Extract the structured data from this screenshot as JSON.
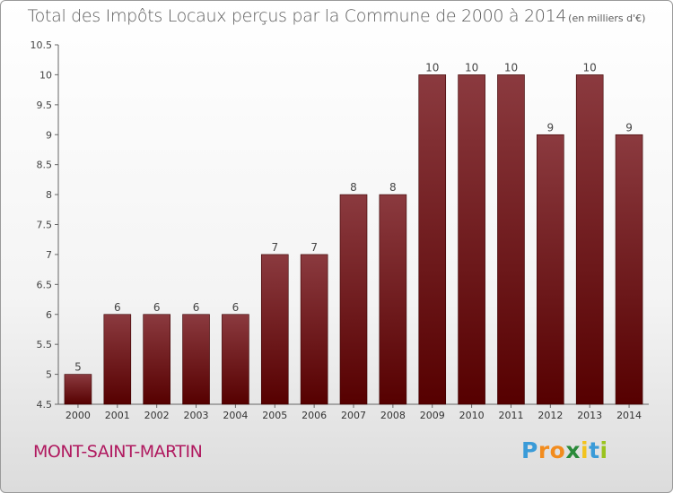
{
  "title": "Total des Impôts Locaux perçus par la Commune de 2000 à 2014",
  "subtitle": "(en milliers d'€)",
  "commune": "MONT-SAINT-MARTIN",
  "brand": {
    "letters": [
      "P",
      "r",
      "o",
      "x",
      "i",
      "t",
      "i"
    ],
    "colors": [
      "#3a9bd8",
      "#f28c1e",
      "#f28c1e",
      "#2a8a3a",
      "#f2c31e",
      "#3a9bd8",
      "#9ac31e"
    ]
  },
  "colors": {
    "bar_top": "#8b3a3f",
    "bar_bottom": "#560000",
    "commune": "#b0195f"
  },
  "chart_data": {
    "type": "bar",
    "title": "Total des Impôts Locaux perçus par la Commune de 2000 à 2014",
    "xlabel": "",
    "ylabel": "",
    "categories": [
      "2000",
      "2001",
      "2002",
      "2003",
      "2004",
      "2005",
      "2006",
      "2007",
      "2008",
      "2009",
      "2010",
      "2011",
      "2012",
      "2013",
      "2014"
    ],
    "values": [
      5,
      6,
      6,
      6,
      6,
      7,
      7,
      8,
      8,
      10,
      10,
      10,
      9,
      10,
      9
    ],
    "value_labels": [
      "5",
      "6",
      "6",
      "6",
      "6",
      "7",
      "7",
      "8",
      "8",
      "10",
      "10",
      "10",
      "9",
      "10",
      "9"
    ],
    "ylim": [
      4.5,
      10.5
    ],
    "yticks": [
      "4.5",
      "5",
      "5.5",
      "6",
      "6.5",
      "7",
      "7.5",
      "8",
      "8.5",
      "9",
      "9.5",
      "10",
      "10.5"
    ],
    "grid": false,
    "legend": "none"
  }
}
